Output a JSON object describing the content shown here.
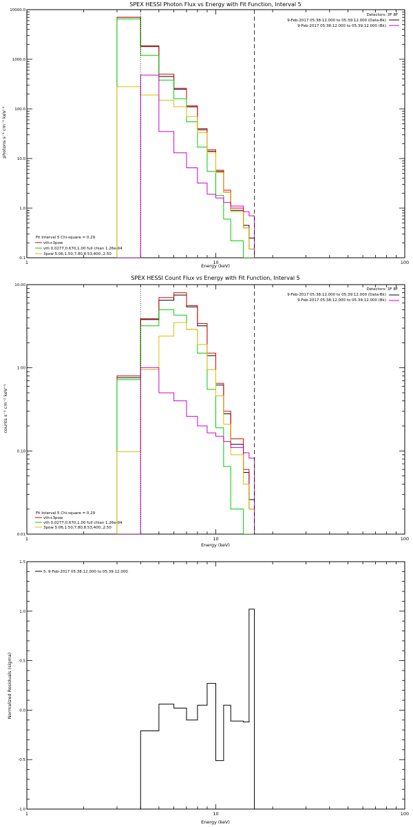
{
  "chart_data": [
    {
      "type": "line",
      "title": "SPEX HESSI Photon Flux vs Energy with Fit Function, Interval 5",
      "xlabel": "Energy (keV)",
      "ylabel": "photons s⁻¹ cm⁻² keV⁻¹",
      "xscale": "log",
      "yscale": "log",
      "xlim": [
        1,
        100
      ],
      "ylim": [
        0.1,
        10000
      ],
      "xticks": [
        1,
        10,
        100
      ],
      "xticklabels": [
        "1",
        "10",
        "100"
      ],
      "yticks": [
        0.1,
        1,
        10,
        100,
        1000,
        10000
      ],
      "yticklabels": [
        "0.1",
        "1.0",
        "10.0",
        "100.0",
        "1000.0",
        "10000.0"
      ],
      "vlines": {
        "dotted": 4,
        "dashed": 16
      },
      "detectors": {
        "heading": "Detectors: 3F 8F",
        "entries": [
          {
            "text": "9-Feb-2017 05:38:12.000 to 05:39:12.000 (Data-Bk)",
            "color": "#000000"
          },
          {
            "text": "9-Feb-2017 05:38:12.000 to 05:39:12.000 (Bk)",
            "color": "#cc00cc"
          }
        ]
      },
      "fitinfo": {
        "header": "Fit Interval 5   Chi-square = 0.29",
        "entries": [
          {
            "text": "vth+3pow",
            "color": "#dd0000"
          },
          {
            "text": "vth 0.0277,0.670,1.00  full chian 1.26e-04",
            "color": "#00cc00"
          },
          {
            "text": "3pow 5.06,1.50,7.80,8.53,400.,2.50",
            "color": "#ddbb00"
          }
        ]
      },
      "bin_edges": [
        3,
        4,
        5,
        6,
        7,
        8,
        9,
        10,
        11,
        12,
        14,
        15,
        16
      ],
      "series": [
        {
          "color": "#000000",
          "values": [
            7000,
            1850,
            450,
            250,
            110,
            38,
            14,
            5.5,
            2.1,
            0.9,
            0.45,
            0.25
          ]
        },
        {
          "color": "#dd0000",
          "values": [
            7000,
            1800,
            500,
            260,
            115,
            40,
            15,
            5.8,
            2.3,
            1.0,
            0.4,
            0.15
          ]
        },
        {
          "color": "#00cc00",
          "values": [
            6500,
            1200,
            380,
            160,
            55,
            17,
            5.5,
            1.8,
            0.6,
            0.22,
            0.1,
            0.1
          ]
        },
        {
          "color": "#ddbb00",
          "values": [
            280,
            190,
            150,
            110,
            70,
            33,
            13,
            5.2,
            2.1,
            0.85,
            0.4,
            0.15
          ]
        },
        {
          "color": "#cc00cc",
          "values": [
            0.1,
            480,
            35,
            13,
            6.5,
            3.2,
            1.9,
            1.6,
            1.3,
            1.1,
            0.85,
            0.7
          ]
        }
      ]
    },
    {
      "type": "line",
      "title": "SPEX HESSI Count Flux vs Energy with Fit Function, Interval 5",
      "xlabel": "Energy (keV)",
      "ylabel": "counts s⁻¹ cm⁻² keV⁻¹",
      "xscale": "log",
      "yscale": "log",
      "xlim": [
        1,
        100
      ],
      "ylim": [
        0.01,
        10
      ],
      "xticks": [
        1,
        10,
        100
      ],
      "xticklabels": [
        "1",
        "10",
        "100"
      ],
      "yticks": [
        0.01,
        0.1,
        1,
        10
      ],
      "yticklabels": [
        "0.01",
        "0.10",
        "1.00",
        "10.00"
      ],
      "vlines": {
        "dotted": 4,
        "dashed": 16
      },
      "detectors": {
        "heading": "Detectors: 3F 8F",
        "entries": [
          {
            "text": "9-Feb-2017 05:38:12.000 to 05:39:12.000 (Data-Bk)",
            "color": "#000000"
          },
          {
            "text": "9-Feb-2017 05:38:12.000 to 05:39:12.000 (Bk)",
            "color": "#cc00cc"
          }
        ]
      },
      "fitinfo": {
        "header": "Fit Interval 5   Chi-square = 0.29",
        "entries": [
          {
            "text": "vth+3pow",
            "color": "#dd0000"
          },
          {
            "text": "vth 0.0277,0.670,1.00  full chian 1.26e-04",
            "color": "#00cc00"
          },
          {
            "text": "3pow 5.06,1.50,7.80,8.53,400.,2.50",
            "color": "#ddbb00"
          }
        ]
      },
      "bin_edges": [
        3,
        4,
        5,
        6,
        7,
        8,
        9,
        10,
        11,
        12,
        14,
        15,
        16
      ],
      "series": [
        {
          "color": "#000000",
          "values": [
            0.76,
            3.8,
            6.5,
            7.5,
            5.4,
            3.2,
            1.4,
            0.62,
            0.28,
            0.12,
            0.055,
            0.026
          ]
        },
        {
          "color": "#dd0000",
          "values": [
            0.8,
            3.9,
            7.0,
            8.0,
            5.6,
            3.4,
            1.5,
            0.65,
            0.3,
            0.14,
            0.06,
            0.02
          ]
        },
        {
          "color": "#00cc00",
          "values": [
            0.72,
            3.2,
            5.0,
            4.3,
            2.9,
            1.5,
            0.55,
            0.19,
            0.065,
            0.02,
            0.01,
            0.01
          ]
        },
        {
          "color": "#ddbb00",
          "values": [
            0.098,
            0.95,
            2.4,
            3.5,
            2.9,
            1.9,
            0.95,
            0.46,
            0.21,
            0.09,
            0.04,
            0.02
          ]
        },
        {
          "color": "#cc00cc",
          "values": [
            0.01,
            1.0,
            0.5,
            0.4,
            0.26,
            0.2,
            0.165,
            0.15,
            0.13,
            0.11,
            0.095,
            0.082
          ]
        }
      ]
    },
    {
      "type": "line",
      "title": "",
      "xlabel": "Energy (keV)",
      "ylabel": "Normalized Residuals (sigma)",
      "xscale": "log",
      "yscale": "linear",
      "xlim": [
        1,
        100
      ],
      "ylim": [
        -1.0,
        1.5
      ],
      "xticks": [
        1,
        10,
        100
      ],
      "xticklabels": [
        "1",
        "10",
        "100"
      ],
      "yticks": [
        -1.0,
        -0.5,
        0.0,
        0.5,
        1.0,
        1.5
      ],
      "yticklabels": [
        "-1.0",
        "-0.5",
        "0.0",
        "0.5",
        "1.0",
        "1.5"
      ],
      "legend": {
        "text": "5,  9-Feb-2017 05:38:12.000 to 05:39:12.000",
        "color": "#000000"
      },
      "bin_edges": [
        4,
        5,
        6,
        7,
        8,
        9,
        10,
        11,
        12,
        14,
        15,
        16
      ],
      "series": [
        {
          "color": "#000000",
          "values": [
            -0.21,
            0.06,
            0.02,
            -0.1,
            0.05,
            0.27,
            -0.51,
            0.05,
            -0.11,
            -0.12,
            1.02
          ]
        }
      ]
    }
  ]
}
